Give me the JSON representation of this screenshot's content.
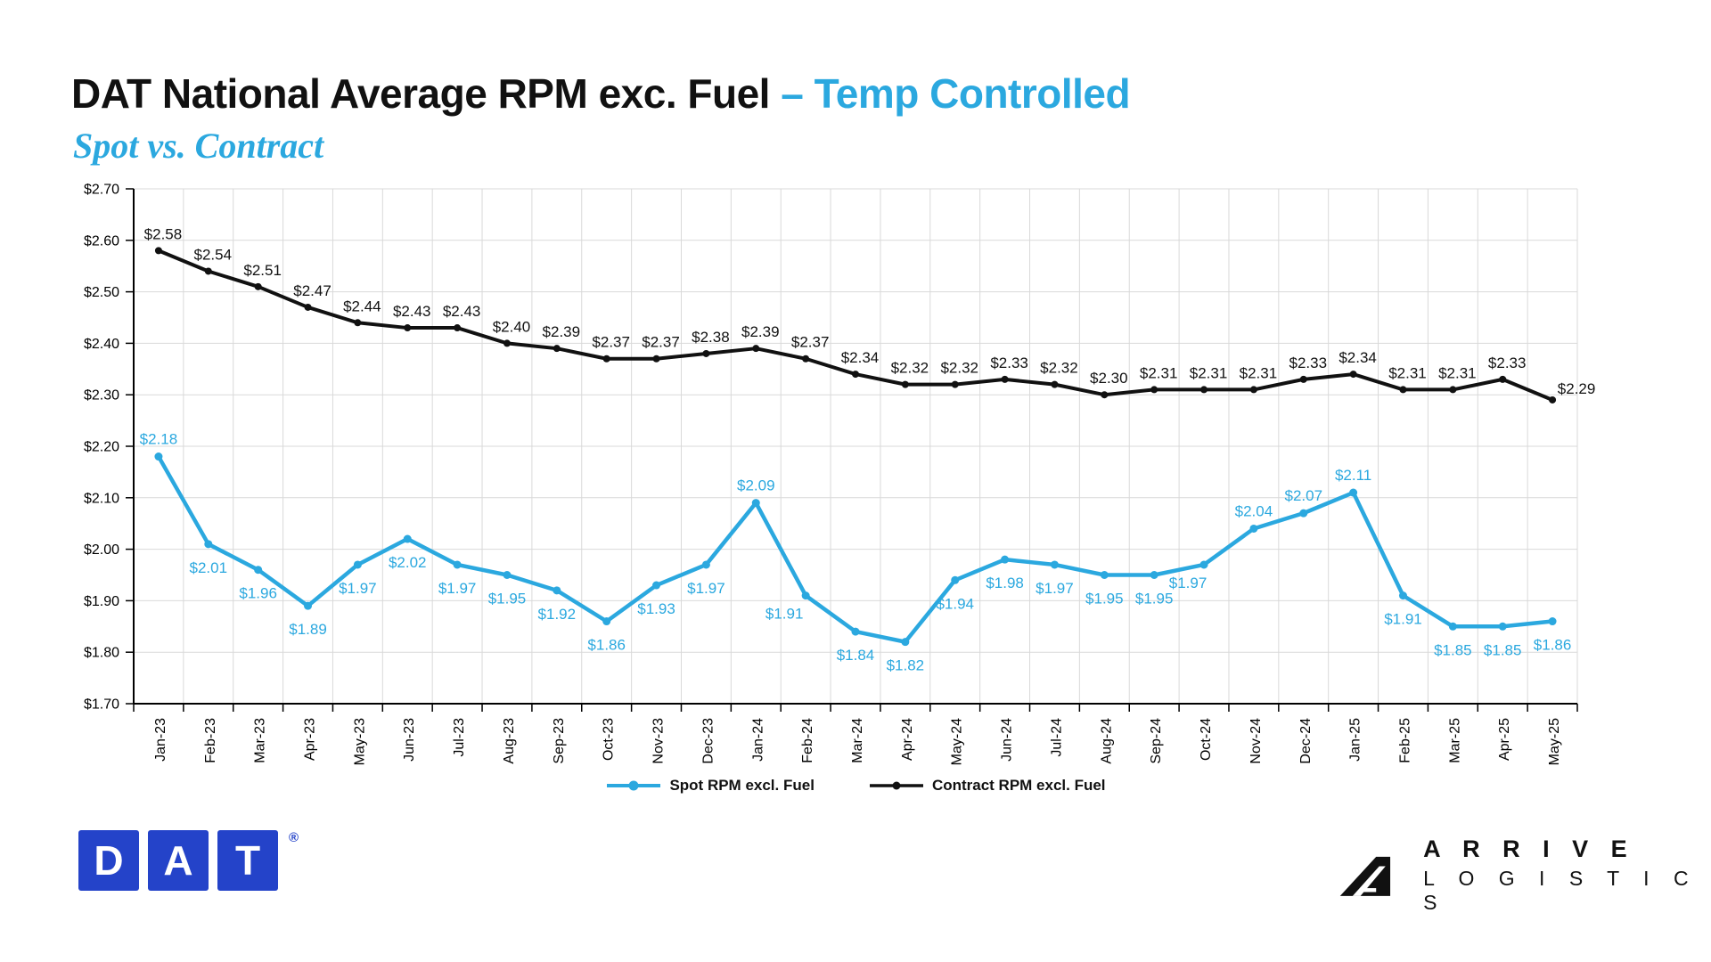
{
  "title": {
    "main": "DAT National Average RPM exc. Fuel ",
    "accent": "– Temp Controlled",
    "subtitle": "Spot vs. Contract"
  },
  "colors": {
    "spot_blue": "#2BA8DF",
    "contract_black": "#111111",
    "gridline": "#D9D9D9",
    "axis": "#000000",
    "dat_blue": "#2443C9"
  },
  "chart_data": {
    "type": "line",
    "title": "DAT National Average RPM exc. Fuel – Temp Controlled (Spot vs. Contract)",
    "categories": [
      "Jan-23",
      "Feb-23",
      "Mar-23",
      "Apr-23",
      "May-23",
      "Jun-23",
      "Jul-23",
      "Aug-23",
      "Sep-23",
      "Oct-23",
      "Nov-23",
      "Dec-23",
      "Jan-24",
      "Feb-24",
      "Mar-24",
      "Apr-24",
      "May-24",
      "Jun-24",
      "Jul-24",
      "Aug-24",
      "Sep-24",
      "Oct-24",
      "Nov-24",
      "Dec-24",
      "Jan-25",
      "Feb-25",
      "Mar-25",
      "Apr-25",
      "May-25"
    ],
    "series": [
      {
        "name": "Spot RPM excl. Fuel",
        "color": "#2BA8DF",
        "values": [
          2.18,
          2.01,
          1.96,
          1.89,
          1.97,
          2.02,
          1.97,
          1.95,
          1.92,
          1.86,
          1.93,
          1.97,
          2.09,
          1.91,
          1.84,
          1.82,
          1.94,
          1.98,
          1.97,
          1.95,
          1.95,
          1.97,
          2.04,
          2.07,
          2.11,
          1.91,
          1.85,
          1.85,
          1.86
        ]
      },
      {
        "name": "Contract RPM excl. Fuel",
        "color": "#111111",
        "values": [
          2.58,
          2.54,
          2.51,
          2.47,
          2.44,
          2.43,
          2.43,
          2.4,
          2.39,
          2.37,
          2.37,
          2.38,
          2.39,
          2.37,
          2.34,
          2.32,
          2.32,
          2.33,
          2.32,
          2.3,
          2.31,
          2.31,
          2.31,
          2.33,
          2.34,
          2.31,
          2.31,
          2.33,
          2.29
        ]
      }
    ],
    "ylim": [
      1.7,
      2.7
    ],
    "ytick_step": 0.1,
    "ytick_labels": [
      "$1.70",
      "$1.80",
      "$1.90",
      "$2.00",
      "$2.10",
      "$2.20",
      "$2.30",
      "$2.40",
      "$2.50",
      "$2.60",
      "$2.70"
    ],
    "grid": true,
    "legend_position": "bottom",
    "data_label_prefix": "$",
    "spot_labels_above_indices": [
      0,
      12,
      22,
      23,
      24
    ]
  },
  "footer": {
    "dat_letters": [
      "D",
      "A",
      "T"
    ],
    "dat_registered": "®",
    "arrive_line1": "A R R I V E",
    "arrive_line2": "L O G I S T I C S"
  }
}
